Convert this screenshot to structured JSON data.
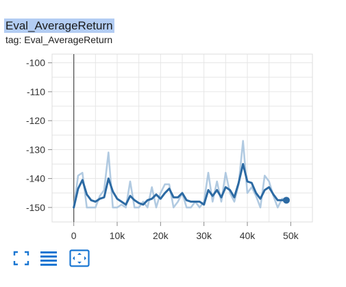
{
  "card": {
    "title": "Eval_AverageReturn",
    "subtitle": "tag: Eval_AverageReturn",
    "title_highlight_color": "#b3cdf3"
  },
  "toolbar": {
    "icons": [
      "fullscreen-icon",
      "toggle-log-scale-icon",
      "fit-domain-icon"
    ],
    "icon_color": "#1976d2"
  },
  "chart_data": {
    "type": "line",
    "xlim": [
      -5000,
      55000
    ],
    "ylim": [
      -155,
      -97
    ],
    "x_ticks": [
      0,
      10000,
      20000,
      30000,
      40000,
      50000
    ],
    "x_tick_labels": [
      "0",
      "10k",
      "20k",
      "30k",
      "40k",
      "50k"
    ],
    "y_ticks": [
      -100,
      -110,
      -120,
      -130,
      -140,
      -150
    ],
    "y_tick_labels": [
      "-100",
      "-110",
      "-120",
      "-130",
      "-140",
      "-150"
    ],
    "grid": true,
    "series": [
      {
        "role": "raw",
        "color": "#a8c4de",
        "x": [
          0,
          1000,
          2000,
          3000,
          4000,
          5000,
          6000,
          7000,
          8000,
          9000,
          10000,
          11000,
          12000,
          13000,
          14000,
          15000,
          16000,
          17000,
          18000,
          19000,
          20000,
          21000,
          22000,
          23000,
          24000,
          25000,
          26000,
          27000,
          28000,
          29000,
          30000,
          31000,
          32000,
          33000,
          34000,
          35000,
          36000,
          37000,
          38000,
          39000,
          40000,
          41000,
          42000,
          43000,
          44000,
          45000,
          46000,
          47000,
          48000,
          49000
        ],
        "y": [
          -150,
          -139,
          -138,
          -150,
          -150,
          -150,
          -146,
          -144,
          -131,
          -150,
          -150,
          -149,
          -150,
          -141,
          -150,
          -150,
          -148,
          -150,
          -143,
          -150,
          -145,
          -142,
          -142,
          -150,
          -148,
          -145,
          -150,
          -150,
          -148,
          -150,
          -148,
          -138,
          -148,
          -141,
          -148,
          -138,
          -145,
          -148,
          -142,
          -127,
          -145,
          -143,
          -146,
          -150,
          -139,
          -141,
          -146,
          -150,
          -147,
          -147
        ]
      },
      {
        "role": "smoothed",
        "color": "#2c6aa3",
        "x": [
          0,
          1000,
          2000,
          3000,
          4000,
          5000,
          6000,
          7000,
          8000,
          9000,
          10000,
          11000,
          12000,
          13000,
          14000,
          15000,
          16000,
          17000,
          18000,
          19000,
          20000,
          21000,
          22000,
          23000,
          24000,
          25000,
          26000,
          27000,
          28000,
          29000,
          30000,
          31000,
          32000,
          33000,
          34000,
          35000,
          36000,
          37000,
          38000,
          39000,
          40000,
          41000,
          42000,
          43000,
          44000,
          45000,
          46000,
          47000,
          48000,
          49000
        ],
        "y": [
          -150,
          -143.5,
          -140.5,
          -145.5,
          -147.5,
          -148,
          -147,
          -146.5,
          -140,
          -144.5,
          -147,
          -148,
          -149,
          -146,
          -147.5,
          -148.5,
          -149,
          -147.5,
          -147,
          -145.5,
          -147,
          -145,
          -143.5,
          -146.5,
          -146.5,
          -145,
          -147.5,
          -148,
          -148,
          -148,
          -149,
          -144,
          -146,
          -144,
          -146.5,
          -143,
          -144,
          -146.5,
          -141.5,
          -135,
          -141,
          -141.5,
          -145,
          -147,
          -144,
          -143,
          -145.5,
          -147.5,
          -147.5,
          -147.5
        ]
      }
    ]
  }
}
